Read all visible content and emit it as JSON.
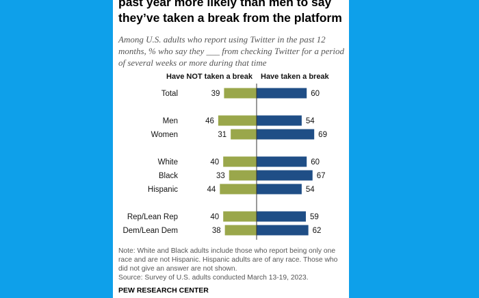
{
  "title": "past year more likely than men to say\nthey’ve taken a break from the platform",
  "subtitle": "Among U.S. adults who report using Twitter in the past 12 months, % who say they ___ from checking Twitter for a period of several weeks or more during that time",
  "note": "Note: White and Black adults include those who report being only one race and are not Hispanic. Hispanic adults are of any race. Those who did not give an answer are not shown.",
  "source": "Source: Survey of U.S. adults conducted March 13-19, 2023.",
  "brand": "PEW RESEARCH CENTER",
  "colors": {
    "not_taken": "#9aa74b",
    "taken": "#1f4e86"
  },
  "chart_data": {
    "type": "bar",
    "orientation": "horizontal-diverging",
    "categories": [
      "Total",
      "Men",
      "Women",
      "White",
      "Black",
      "Hispanic",
      "Rep/Lean Rep",
      "Dem/Lean Dem"
    ],
    "groups": [
      [
        "Total"
      ],
      [
        "Men",
        "Women"
      ],
      [
        "White",
        "Black",
        "Hispanic"
      ],
      [
        "Rep/Lean Rep",
        "Dem/Lean Dem"
      ]
    ],
    "series": [
      {
        "name": "Have NOT taken a break",
        "values": [
          39,
          46,
          31,
          40,
          33,
          44,
          40,
          38
        ]
      },
      {
        "name": "Have taken a break",
        "values": [
          60,
          54,
          69,
          60,
          67,
          54,
          59,
          62
        ]
      }
    ],
    "grid": false
  }
}
